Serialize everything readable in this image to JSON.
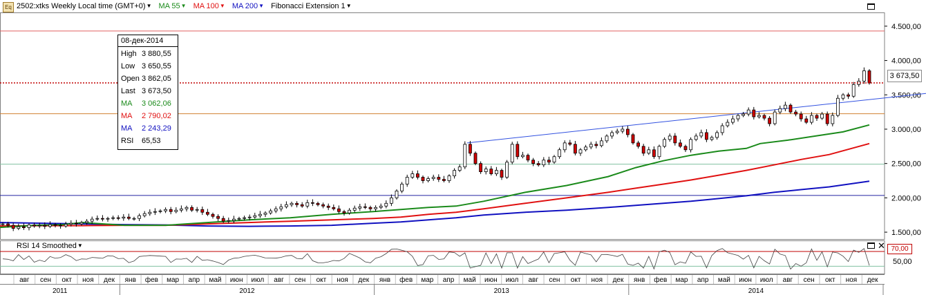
{
  "toolbar": {
    "icon_label": "Eq",
    "instrument": "2502:xtks Weekly Local time (GMT+0)",
    "ma55": "MA 55",
    "ma100": "MA 100",
    "ma200": "MA 200",
    "fibo": "Fibonacci Extension 1"
  },
  "info": {
    "date": "08-дек-2014",
    "high_label": "High",
    "high": "3 880,55",
    "low_label": "Low",
    "low": "3 650,55",
    "open_label": "Open",
    "open": "3 862,05",
    "last_label": "Last",
    "last": "3 673,50",
    "ma55_label": "MA",
    "ma55": "3 062,06",
    "ma100_label": "MA",
    "ma100": "2 790,02",
    "ma200_label": "MA",
    "ma200": "2 243,29",
    "rsi_label": "RSI",
    "rsi": "65,53"
  },
  "rsi_panel": {
    "title": "RSI 14 Smoothed",
    "badge": "70,00",
    "label_50": "50,00"
  },
  "price_badge": "3 673,50",
  "colors": {
    "ma55": "#1a8a1a",
    "ma100": "#e01010",
    "ma200": "#1010c0",
    "candle_up": "#ffffff",
    "candle_down": "#d00000",
    "grid": "#d8d8d8"
  },
  "chart_data": {
    "type": "candlestick",
    "ylim": [
      1400,
      4700
    ],
    "yticks": [
      "1.500,00",
      "2.000,00",
      "2.500,00",
      "3.000,00",
      "3.500,00",
      "4.000,00",
      "4.500,00"
    ],
    "ytick_values": [
      1500,
      2000,
      2500,
      3000,
      3500,
      4000,
      4500
    ],
    "horizontal_lines": [
      {
        "value": 4430,
        "color": "#e06060"
      },
      {
        "value": 3225,
        "color": "#d08030"
      },
      {
        "value": 2490,
        "color": "#80c0a0"
      },
      {
        "value": 2035,
        "color": "#2020a0"
      }
    ],
    "last_price": 3673.5,
    "months": [
      "авг",
      "сен",
      "окт",
      "ноя",
      "дек",
      "янв",
      "фев",
      "мар",
      "апр",
      "май",
      "июн",
      "июл",
      "авг",
      "сен",
      "окт",
      "ноя",
      "дек",
      "янв",
      "фев",
      "мар",
      "апр",
      "май",
      "июн",
      "июл",
      "авг",
      "сен",
      "окт",
      "ноя",
      "дек",
      "янв",
      "фев",
      "мар",
      "апр",
      "май",
      "июн",
      "июл",
      "авг",
      "сен",
      "окт",
      "ноя",
      "дек"
    ],
    "years": [
      "2011",
      "2012",
      "2013",
      "2014"
    ],
    "weekly_close": [
      1620,
      1600,
      1555,
      1580,
      1565,
      1605,
      1590,
      1600,
      1585,
      1610,
      1600,
      1590,
      1615,
      1630,
      1620,
      1640,
      1660,
      1690,
      1700,
      1690,
      1700,
      1710,
      1705,
      1720,
      1700,
      1700,
      1740,
      1770,
      1790,
      1800,
      1810,
      1830,
      1800,
      1820,
      1840,
      1860,
      1820,
      1830,
      1790,
      1760,
      1730,
      1700,
      1660,
      1670,
      1690,
      1700,
      1710,
      1720,
      1740,
      1760,
      1780,
      1810,
      1840,
      1870,
      1900,
      1920,
      1900,
      1880,
      1930,
      1920,
      1900,
      1880,
      1860,
      1840,
      1800,
      1780,
      1820,
      1850,
      1870,
      1860,
      1840,
      1860,
      1880,
      1920,
      2000,
      2100,
      2200,
      2300,
      2350,
      2300,
      2250,
      2280,
      2300,
      2270,
      2250,
      2320,
      2400,
      2450,
      2780,
      2650,
      2500,
      2380,
      2420,
      2350,
      2400,
      2300,
      2520,
      2780,
      2600,
      2620,
      2550,
      2500,
      2480,
      2550,
      2520,
      2600,
      2700,
      2800,
      2780,
      2650,
      2700,
      2740,
      2780,
      2760,
      2830,
      2900,
      2950,
      2970,
      3000,
      2920,
      2800,
      2750,
      2650,
      2700,
      2600,
      2750,
      2850,
      2900,
      2800,
      2750,
      2700,
      2850,
      2900,
      2950,
      2850,
      2880,
      2950,
      3050,
      3100,
      3150,
      3200,
      3220,
      3280,
      3180,
      3200,
      3160,
      3080,
      3250,
      3300,
      3350,
      3250,
      3220,
      3150,
      3100,
      3200,
      3160,
      3220,
      3080,
      3200,
      3450,
      3500,
      3480,
      3650,
      3700,
      3850,
      3673
    ],
    "ma55": [
      [
        0,
        1570
      ],
      [
        50,
        1600
      ],
      [
        90,
        1610
      ],
      [
        120,
        1640
      ],
      [
        180,
        1600
      ],
      [
        240,
        1600
      ],
      [
        300,
        1640
      ],
      [
        360,
        1680
      ],
      [
        420,
        1710
      ],
      [
        480,
        1760
      ],
      [
        540,
        1800
      ],
      [
        580,
        1830
      ],
      [
        620,
        1860
      ],
      [
        660,
        1880
      ],
      [
        700,
        1950
      ],
      [
        760,
        2080
      ],
      [
        820,
        2180
      ],
      [
        880,
        2310
      ],
      [
        920,
        2440
      ],
      [
        960,
        2540
      ],
      [
        1000,
        2620
      ],
      [
        1040,
        2680
      ],
      [
        1080,
        2720
      ],
      [
        1100,
        2790
      ],
      [
        1140,
        2840
      ],
      [
        1180,
        2900
      ],
      [
        1220,
        2960
      ],
      [
        1258,
        3062
      ]
    ],
    "ma100": [
      [
        0,
        1590
      ],
      [
        60,
        1595
      ],
      [
        120,
        1595
      ],
      [
        180,
        1600
      ],
      [
        240,
        1600
      ],
      [
        300,
        1620
      ],
      [
        360,
        1640
      ],
      [
        420,
        1660
      ],
      [
        480,
        1680
      ],
      [
        540,
        1700
      ],
      [
        580,
        1720
      ],
      [
        620,
        1760
      ],
      [
        660,
        1790
      ],
      [
        700,
        1840
      ],
      [
        760,
        1920
      ],
      [
        820,
        2000
      ],
      [
        880,
        2080
      ],
      [
        920,
        2140
      ],
      [
        960,
        2200
      ],
      [
        1000,
        2260
      ],
      [
        1040,
        2330
      ],
      [
        1080,
        2400
      ],
      [
        1120,
        2480
      ],
      [
        1160,
        2560
      ],
      [
        1200,
        2630
      ],
      [
        1258,
        2790
      ]
    ],
    "ma200": [
      [
        0,
        1640
      ],
      [
        60,
        1630
      ],
      [
        120,
        1620
      ],
      [
        180,
        1610
      ],
      [
        240,
        1605
      ],
      [
        300,
        1590
      ],
      [
        360,
        1585
      ],
      [
        420,
        1590
      ],
      [
        480,
        1600
      ],
      [
        540,
        1630
      ],
      [
        580,
        1650
      ],
      [
        620,
        1680
      ],
      [
        660,
        1710
      ],
      [
        700,
        1750
      ],
      [
        760,
        1790
      ],
      [
        820,
        1820
      ],
      [
        880,
        1860
      ],
      [
        920,
        1890
      ],
      [
        960,
        1920
      ],
      [
        1000,
        1950
      ],
      [
        1040,
        1990
      ],
      [
        1080,
        2030
      ],
      [
        1120,
        2080
      ],
      [
        1160,
        2120
      ],
      [
        1200,
        2160
      ],
      [
        1258,
        2243
      ]
    ],
    "fibo_line": [
      [
        676,
        2800
      ],
      [
        1340,
        3520
      ]
    ],
    "rsi_levels": [
      70,
      50,
      30
    ]
  }
}
